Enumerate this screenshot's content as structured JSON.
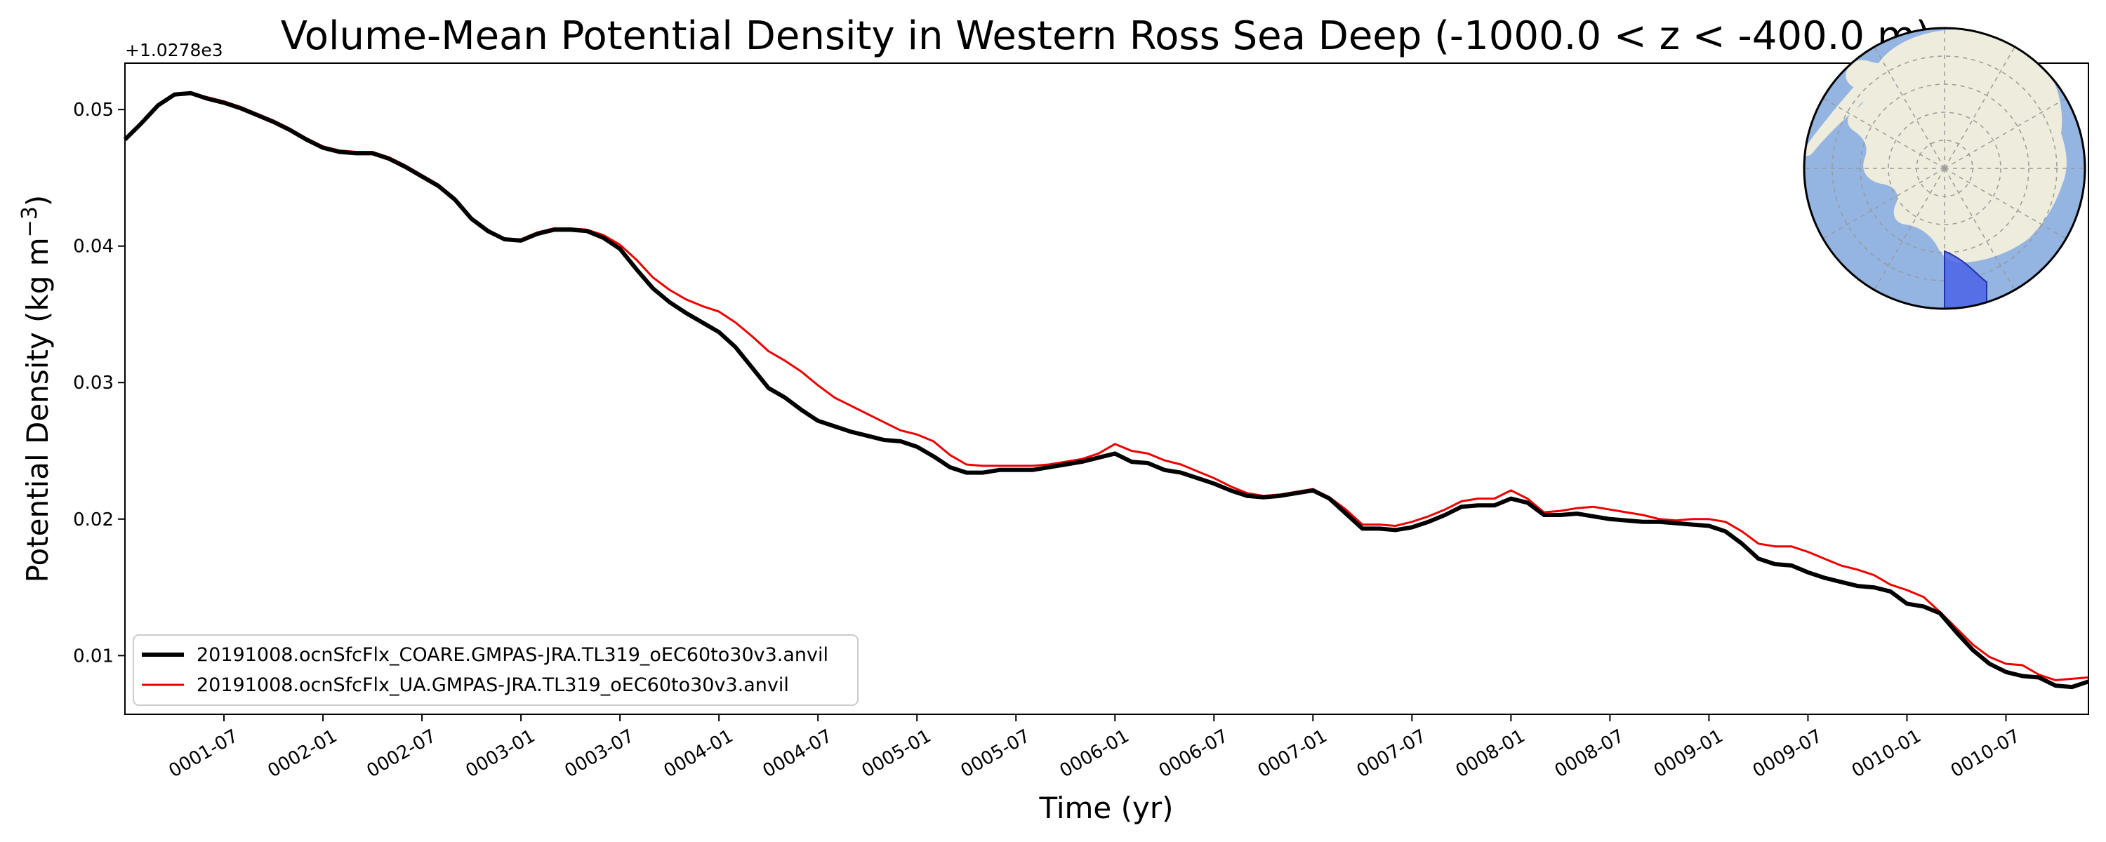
{
  "chart_data": {
    "type": "line",
    "title": "Volume-Mean Potential Density in Western Ross Sea Deep (-1000.0 < z < -400.0 m)",
    "xlabel": "Time (yr)",
    "ylabel": "Potential Density (kg m",
    "ylabel_superscript": "−3",
    "ylabel_suffix": ")",
    "offset_text": "+1.0278e3",
    "y_offset": 1027.8,
    "xlim": [
      "0001-01-01",
      "0010-12-01"
    ],
    "ylim": [
      0.0057,
      0.0534
    ],
    "x_tick_labels": [
      "0001-07",
      "0002-01",
      "0002-07",
      "0003-01",
      "0003-07",
      "0004-01",
      "0004-07",
      "0005-01",
      "0005-07",
      "0006-01",
      "0006-07",
      "0007-01",
      "0007-07",
      "0008-01",
      "0008-07",
      "0009-01",
      "0009-07",
      "0010-01",
      "0010-07"
    ],
    "y_ticks": [
      0.01,
      0.02,
      0.03,
      0.04,
      0.05
    ],
    "y_tick_labels": [
      "0.01",
      "0.02",
      "0.03",
      "0.04",
      "0.05"
    ],
    "grid": false,
    "legend_position": "lower-left",
    "x": [
      "0001-01",
      "0001-02",
      "0001-03",
      "0001-04",
      "0001-05",
      "0001-06",
      "0001-07",
      "0001-08",
      "0001-09",
      "0001-10",
      "0001-11",
      "0001-12",
      "0002-01",
      "0002-02",
      "0002-03",
      "0002-04",
      "0002-05",
      "0002-06",
      "0002-07",
      "0002-08",
      "0002-09",
      "0002-10",
      "0002-11",
      "0002-12",
      "0003-01",
      "0003-02",
      "0003-03",
      "0003-04",
      "0003-05",
      "0003-06",
      "0003-07",
      "0003-08",
      "0003-09",
      "0003-10",
      "0003-11",
      "0003-12",
      "0004-01",
      "0004-02",
      "0004-03",
      "0004-04",
      "0004-05",
      "0004-06",
      "0004-07",
      "0004-08",
      "0004-09",
      "0004-10",
      "0004-11",
      "0004-12",
      "0005-01",
      "0005-02",
      "0005-03",
      "0005-04",
      "0005-05",
      "0005-06",
      "0005-07",
      "0005-08",
      "0005-09",
      "0005-10",
      "0005-11",
      "0005-12",
      "0006-01",
      "0006-02",
      "0006-03",
      "0006-04",
      "0006-05",
      "0006-06",
      "0006-07",
      "0006-08",
      "0006-09",
      "0006-10",
      "0006-11",
      "0006-12",
      "0007-01",
      "0007-02",
      "0007-03",
      "0007-04",
      "0007-05",
      "0007-06",
      "0007-07",
      "0007-08",
      "0007-09",
      "0007-10",
      "0007-11",
      "0007-12",
      "0008-01",
      "0008-02",
      "0008-03",
      "0008-04",
      "0008-05",
      "0008-06",
      "0008-07",
      "0008-08",
      "0008-09",
      "0008-10",
      "0008-11",
      "0008-12",
      "0009-01",
      "0009-02",
      "0009-03",
      "0009-04",
      "0009-05",
      "0009-06",
      "0009-07",
      "0009-08",
      "0009-09",
      "0009-10",
      "0009-11",
      "0009-12",
      "0010-01",
      "0010-02",
      "0010-03",
      "0010-04",
      "0010-05",
      "0010-06",
      "0010-07",
      "0010-08",
      "0010-09",
      "0010-10",
      "0010-11",
      "0010-12"
    ],
    "series": [
      {
        "name": "20191008.ocnSfcFlx_COARE.GMPAS-JRA.TL319_oEC60to30v3.anvil",
        "color": "#000000",
        "values": [
          0.0478,
          0.049,
          0.0503,
          0.0511,
          0.0512,
          0.0508,
          0.0505,
          0.0501,
          0.0496,
          0.0491,
          0.0485,
          0.0478,
          0.0472,
          0.0469,
          0.0468,
          0.0468,
          0.0464,
          0.0458,
          0.0451,
          0.0444,
          0.0434,
          0.042,
          0.0411,
          0.0405,
          0.0404,
          0.0409,
          0.0412,
          0.0412,
          0.0411,
          0.0406,
          0.0398,
          0.0383,
          0.0369,
          0.0359,
          0.0351,
          0.0344,
          0.0337,
          0.0326,
          0.0311,
          0.0296,
          0.0289,
          0.028,
          0.0272,
          0.0268,
          0.0264,
          0.0261,
          0.0258,
          0.0257,
          0.0253,
          0.0246,
          0.0238,
          0.0234,
          0.0234,
          0.0236,
          0.0236,
          0.0236,
          0.0238,
          0.024,
          0.0242,
          0.0245,
          0.0248,
          0.0242,
          0.0241,
          0.0236,
          0.0234,
          0.023,
          0.0226,
          0.0221,
          0.0217,
          0.0216,
          0.0217,
          0.0219,
          0.0221,
          0.0215,
          0.0204,
          0.0193,
          0.0193,
          0.0192,
          0.0194,
          0.0198,
          0.0203,
          0.0209,
          0.021,
          0.021,
          0.0215,
          0.0212,
          0.0203,
          0.0203,
          0.0204,
          0.0202,
          0.02,
          0.0199,
          0.0198,
          0.0198,
          0.0197,
          0.0196,
          0.0195,
          0.0191,
          0.0182,
          0.0171,
          0.0167,
          0.0166,
          0.0161,
          0.0157,
          0.0154,
          0.0151,
          0.015,
          0.0147,
          0.0138,
          0.0136,
          0.0131,
          0.0117,
          0.0104,
          0.0094,
          0.0088,
          0.0085,
          0.0084,
          0.0078,
          0.0077,
          0.0081
        ]
      },
      {
        "name": "20191008.ocnSfcFlx_UA.GMPAS-JRA.TL319_oEC60to30v3.anvil",
        "color": "#ee0000",
        "values": [
          0.0478,
          0.049,
          0.0503,
          0.0511,
          0.0512,
          0.0509,
          0.0506,
          0.0502,
          0.0497,
          0.0492,
          0.0486,
          0.0479,
          0.0473,
          0.047,
          0.0469,
          0.0469,
          0.0465,
          0.0459,
          0.0452,
          0.0445,
          0.0435,
          0.0421,
          0.0412,
          0.0405,
          0.0405,
          0.041,
          0.0413,
          0.0413,
          0.0412,
          0.0408,
          0.0401,
          0.039,
          0.0377,
          0.0368,
          0.0361,
          0.0356,
          0.0352,
          0.0344,
          0.0334,
          0.0323,
          0.0316,
          0.0308,
          0.0298,
          0.0289,
          0.0283,
          0.0277,
          0.0271,
          0.0265,
          0.0262,
          0.0257,
          0.0247,
          0.024,
          0.0239,
          0.0239,
          0.0239,
          0.0239,
          0.024,
          0.0242,
          0.0244,
          0.0248,
          0.0255,
          0.025,
          0.0248,
          0.0243,
          0.024,
          0.0235,
          0.023,
          0.0224,
          0.0219,
          0.0217,
          0.0218,
          0.022,
          0.0222,
          0.0216,
          0.0207,
          0.0196,
          0.0196,
          0.0195,
          0.0198,
          0.0202,
          0.0207,
          0.0213,
          0.0215,
          0.0215,
          0.0221,
          0.0215,
          0.0205,
          0.0206,
          0.0208,
          0.0209,
          0.0207,
          0.0205,
          0.0203,
          0.02,
          0.0199,
          0.02,
          0.02,
          0.0198,
          0.0191,
          0.0182,
          0.018,
          0.018,
          0.0176,
          0.0171,
          0.0166,
          0.0163,
          0.0159,
          0.0152,
          0.0148,
          0.0143,
          0.0132,
          0.012,
          0.0108,
          0.0099,
          0.0094,
          0.0093,
          0.0086,
          0.0082,
          0.0083,
          0.0084
        ]
      }
    ]
  },
  "inset_map": {
    "ocean_color": "#94b4e2",
    "land_color": "#eeecdc",
    "region_color": "#4a64e8"
  }
}
